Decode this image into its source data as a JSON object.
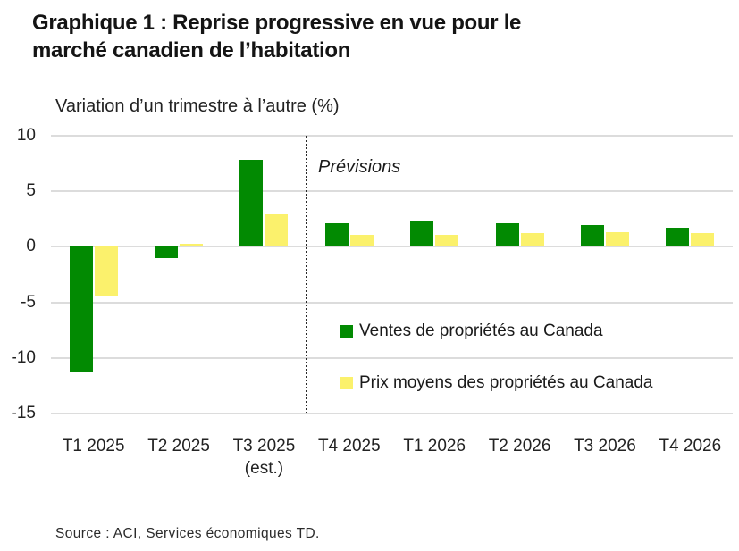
{
  "header": {
    "title_line1": "Graphique 1 : Reprise progressive en vue pour le",
    "title_line2": "marché canadien de l’habitation"
  },
  "chart_data": {
    "type": "bar",
    "title": "Graphique 1 : Reprise progressive en vue pour le marché canadien de l’habitation",
    "unit_label": "Variation d’un trimestre à l’autre (%)",
    "categories": [
      "T1 2025",
      "T2 2025",
      "T3 2025",
      "T4 2025",
      "T1 2026",
      "T2 2026",
      "T3 2026",
      "T4 2026"
    ],
    "category_note": {
      "index": 2,
      "text": "(est.)"
    },
    "series": [
      {
        "name": "Ventes de propriétés au Canada",
        "color": "#028A02",
        "values": [
          -11.2,
          -1.0,
          7.8,
          2.1,
          2.4,
          2.1,
          2.0,
          1.7
        ]
      },
      {
        "name": "Prix moyens des propriétés au Canada",
        "color": "#FBF16C",
        "values": [
          -4.5,
          0.3,
          2.9,
          1.1,
          1.1,
          1.2,
          1.3,
          1.2
        ]
      }
    ],
    "yticks": [
      10,
      5,
      0,
      -5,
      -10,
      -15
    ],
    "ylim": [
      -15,
      10
    ],
    "grid": "horizontal",
    "gridline_color": "#dcdcdc",
    "legend_position": "inside-right",
    "annotation": {
      "text": "Prévisions",
      "style": "italic"
    },
    "forecast_start_index": 3
  },
  "source": {
    "text": "Source : ACI, Services économiques TD."
  }
}
